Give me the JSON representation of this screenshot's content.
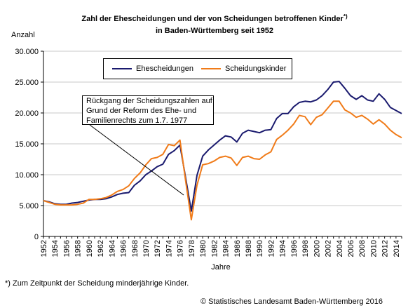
{
  "chart_data": {
    "type": "line",
    "title_line1": "Zahl der Ehescheidungen und der von Scheidungen betroffenen Kinder",
    "title_sup": "*)",
    "title_line2": "in Baden-Württemberg seit 1952",
    "ylabel": "Anzahl",
    "xlabel": "Jahre",
    "ylim": [
      0,
      30000
    ],
    "yticks": [
      "0",
      "5.000",
      "10.000",
      "15.000",
      "20.000",
      "25.000",
      "30.000"
    ],
    "ytick_values": [
      0,
      5000,
      10000,
      15000,
      20000,
      25000,
      30000
    ],
    "xlim": [
      1952,
      2015
    ],
    "xticks": [
      1952,
      1954,
      1956,
      1958,
      1960,
      1962,
      1964,
      1966,
      1968,
      1970,
      1972,
      1974,
      1976,
      1978,
      1980,
      1982,
      1984,
      1986,
      1988,
      1990,
      1992,
      1994,
      1996,
      1998,
      2000,
      2002,
      2004,
      2006,
      2008,
      2010,
      2012,
      2014
    ],
    "x": [
      1952,
      1953,
      1954,
      1955,
      1956,
      1957,
      1958,
      1959,
      1960,
      1961,
      1962,
      1963,
      1964,
      1965,
      1966,
      1967,
      1968,
      1969,
      1970,
      1971,
      1972,
      1973,
      1974,
      1975,
      1976,
      1977,
      1978,
      1979,
      1980,
      1981,
      1982,
      1983,
      1984,
      1985,
      1986,
      1987,
      1988,
      1989,
      1990,
      1991,
      1992,
      1993,
      1994,
      1995,
      1996,
      1997,
      1998,
      1999,
      2000,
      2001,
      2002,
      2003,
      2004,
      2005,
      2006,
      2007,
      2008,
      2009,
      2010,
      2011,
      2012,
      2013,
      2014,
      2015
    ],
    "series": [
      {
        "name": "Ehescheidungen",
        "color": "#1a1a6e",
        "values": [
          5800,
          5600,
          5300,
          5200,
          5200,
          5400,
          5500,
          5700,
          5900,
          6000,
          6000,
          6100,
          6400,
          6800,
          7000,
          7100,
          8300,
          9000,
          10000,
          10600,
          11300,
          11700,
          13300,
          13900,
          14800,
          9500,
          4100,
          9900,
          13000,
          14000,
          14800,
          15600,
          16300,
          16100,
          15300,
          16700,
          17200,
          17000,
          16800,
          17200,
          17300,
          19100,
          19900,
          19900,
          21000,
          21700,
          21900,
          21800,
          22100,
          22800,
          23800,
          25000,
          25100,
          24000,
          22800,
          22200,
          22800,
          22100,
          21900,
          23100,
          22200,
          20900,
          20400,
          19900
        ]
      },
      {
        "name": "Scheidungskinder",
        "color": "#f07b19",
        "values": [
          5800,
          5500,
          5200,
          5100,
          5100,
          5100,
          5200,
          5400,
          6000,
          6000,
          6100,
          6300,
          6700,
          7300,
          7600,
          8200,
          9400,
          10300,
          11600,
          12600,
          12800,
          13300,
          14900,
          14700,
          15600,
          9000,
          2700,
          8300,
          11600,
          11800,
          12200,
          12800,
          13000,
          12700,
          11500,
          12800,
          13000,
          12600,
          12500,
          13200,
          13700,
          15700,
          16400,
          17200,
          18200,
          19600,
          19400,
          18100,
          19300,
          19700,
          20800,
          21900,
          21900,
          20500,
          20000,
          19300,
          19600,
          19000,
          18200,
          18900,
          18200,
          17200,
          16500,
          16000
        ]
      }
    ],
    "legend_position": "top-center",
    "grid": true,
    "annotation_lines": [
      "Rückgang der Scheidungszahlen auf",
      "Grund der Reform des Ehe- und",
      "Familienrechts zum 1.7. 1977"
    ]
  },
  "footnote": "*) Zum Zeitpunkt der Scheidung minderjährige Kinder.",
  "copyright": "© Statistisches Landesamt Baden-Württemberg 2016",
  "colors": {
    "grid": "#c8c8c8",
    "axis": "#000000"
  }
}
